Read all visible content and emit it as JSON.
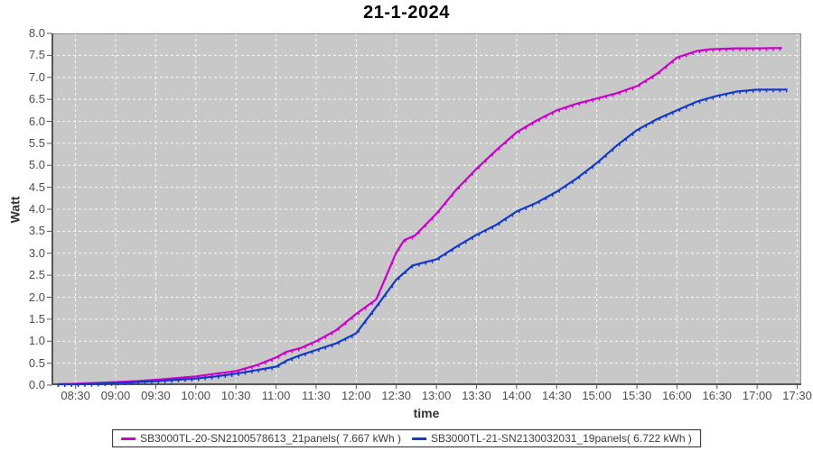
{
  "title": "21-1-2024",
  "colors": {
    "series1": "#cc00cc",
    "series2": "#1538c8",
    "plot_background": "#c8c8c8",
    "gridline": "#ffffff",
    "axis_line": "#555555",
    "plot_border": "#909090",
    "tick_text": "#4d4d4d"
  },
  "y_axis": {
    "label": "Watt",
    "tick_labels": [
      "0.0",
      "0.5",
      "1.0",
      "1.5",
      "2.0",
      "2.5",
      "3.0",
      "3.5",
      "4.0",
      "4.5",
      "5.0",
      "5.5",
      "6.0",
      "6.5",
      "7.0",
      "7.5",
      "8.0"
    ]
  },
  "x_axis": {
    "label": "time",
    "tick_labels": [
      "08:30",
      "09:00",
      "09:30",
      "10:00",
      "10:30",
      "11:00",
      "11:30",
      "12:00",
      "12:30",
      "13:00",
      "13:30",
      "14:00",
      "14:30",
      "15:00",
      "15:30",
      "16:00",
      "16:30",
      "17:00",
      "17:30"
    ]
  },
  "legend": {
    "items": [
      {
        "label": "SB3000TL-20-SN2100578613_21panels( 7.667 kWh )",
        "color": "#cc00cc"
      },
      {
        "label": "SB3000TL-21-SN2130032031_19panels( 6.722 kWh )",
        "color": "#1538c8"
      }
    ]
  },
  "chart_data": {
    "type": "line",
    "title": "21-1-2024",
    "xlabel": "time",
    "ylabel": "Watt",
    "ylim": [
      0,
      8
    ],
    "y_step": 0.5,
    "x_range_minutes": [
      492,
      1053
    ],
    "x_tick_interval_minutes": 30,
    "grid": true,
    "legend_position": "bottom",
    "series": [
      {
        "name": "SB3000TL-20-SN2100578613_21panels( 7.667 kWh )",
        "color": "#cc00cc",
        "points": [
          [
            "08:17",
            0.02
          ],
          [
            "08:30",
            0.03
          ],
          [
            "08:45",
            0.05
          ],
          [
            "09:00",
            0.07
          ],
          [
            "09:15",
            0.09
          ],
          [
            "09:30",
            0.12
          ],
          [
            "09:45",
            0.16
          ],
          [
            "10:00",
            0.2
          ],
          [
            "10:15",
            0.26
          ],
          [
            "10:30",
            0.32
          ],
          [
            "10:45",
            0.45
          ],
          [
            "11:00",
            0.63
          ],
          [
            "11:08",
            0.76
          ],
          [
            "11:18",
            0.84
          ],
          [
            "11:30",
            1.0
          ],
          [
            "11:45",
            1.25
          ],
          [
            "12:00",
            1.62
          ],
          [
            "12:15",
            1.95
          ],
          [
            "12:30",
            3.02
          ],
          [
            "12:36",
            3.3
          ],
          [
            "12:44",
            3.4
          ],
          [
            "13:00",
            3.9
          ],
          [
            "13:15",
            4.45
          ],
          [
            "13:30",
            4.92
          ],
          [
            "13:45",
            5.35
          ],
          [
            "14:00",
            5.75
          ],
          [
            "14:15",
            6.02
          ],
          [
            "14:30",
            6.25
          ],
          [
            "14:45",
            6.4
          ],
          [
            "15:00",
            6.52
          ],
          [
            "15:15",
            6.64
          ],
          [
            "15:30",
            6.8
          ],
          [
            "15:45",
            7.08
          ],
          [
            "16:00",
            7.45
          ],
          [
            "16:15",
            7.6
          ],
          [
            "16:25",
            7.64
          ],
          [
            "16:45",
            7.66
          ],
          [
            "17:00",
            7.66
          ],
          [
            "17:18",
            7.667
          ]
        ]
      },
      {
        "name": "SB3000TL-21-SN2130032031_19panels( 6.722 kWh )",
        "color": "#1538c8",
        "points": [
          [
            "08:17",
            0.02
          ],
          [
            "08:30",
            0.02
          ],
          [
            "08:45",
            0.03
          ],
          [
            "09:00",
            0.05
          ],
          [
            "09:15",
            0.07
          ],
          [
            "09:30",
            0.09
          ],
          [
            "09:45",
            0.12
          ],
          [
            "10:00",
            0.15
          ],
          [
            "10:15",
            0.2
          ],
          [
            "10:30",
            0.26
          ],
          [
            "10:45",
            0.34
          ],
          [
            "11:00",
            0.42
          ],
          [
            "11:08",
            0.56
          ],
          [
            "11:18",
            0.68
          ],
          [
            "11:30",
            0.8
          ],
          [
            "11:45",
            0.95
          ],
          [
            "12:00",
            1.18
          ],
          [
            "12:15",
            1.78
          ],
          [
            "12:30",
            2.4
          ],
          [
            "12:42",
            2.72
          ],
          [
            "12:52",
            2.8
          ],
          [
            "13:00",
            2.86
          ],
          [
            "13:15",
            3.15
          ],
          [
            "13:30",
            3.42
          ],
          [
            "13:45",
            3.65
          ],
          [
            "14:00",
            3.95
          ],
          [
            "14:15",
            4.15
          ],
          [
            "14:30",
            4.4
          ],
          [
            "14:45",
            4.7
          ],
          [
            "15:00",
            5.05
          ],
          [
            "15:15",
            5.45
          ],
          [
            "15:30",
            5.8
          ],
          [
            "15:45",
            6.05
          ],
          [
            "16:00",
            6.25
          ],
          [
            "16:15",
            6.45
          ],
          [
            "16:30",
            6.58
          ],
          [
            "16:45",
            6.68
          ],
          [
            "17:00",
            6.72
          ],
          [
            "17:22",
            6.722
          ]
        ]
      }
    ]
  }
}
